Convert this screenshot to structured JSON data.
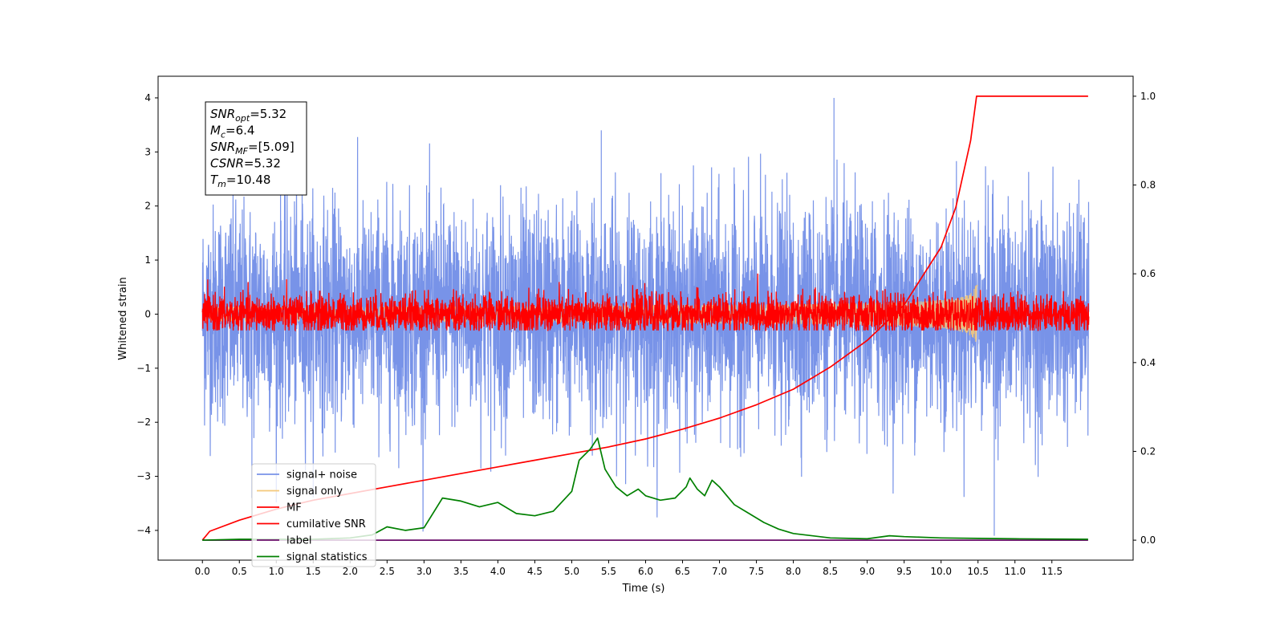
{
  "chart_data": {
    "type": "line",
    "title": "",
    "xlabel": "Time (s)",
    "ylabel": "Whitened strain",
    "xlim": [
      -0.6,
      12.6
    ],
    "ylim": [
      -4.55,
      4.4
    ],
    "y2lim": [
      -0.045,
      1.045
    ],
    "xticks": [
      0.0,
      0.5,
      1.0,
      1.5,
      2.0,
      2.5,
      3.0,
      3.5,
      4.0,
      4.5,
      5.0,
      5.5,
      6.0,
      6.5,
      7.0,
      7.5,
      8.0,
      8.5,
      9.0,
      9.5,
      10.0,
      10.5,
      11.0,
      11.5
    ],
    "xtick_labels": [
      "0.0",
      "0.5",
      "1.0",
      "1.5",
      "2.0",
      "2.5",
      "3.0",
      "3.5",
      "4.0",
      "4.5",
      "5.0",
      "5.5",
      "6.0",
      "6.5",
      "7.0",
      "7.5",
      "8.0",
      "8.5",
      "9.0",
      "9.5",
      "10.0",
      "10.5",
      "11.0",
      "11.5"
    ],
    "yticks": [
      -4,
      -3,
      -2,
      -1,
      0,
      1,
      2,
      3,
      4
    ],
    "ytick_labels": [
      "−4",
      "−3",
      "−2",
      "−1",
      "0",
      "1",
      "2",
      "3",
      "4"
    ],
    "y2ticks": [
      0.0,
      0.2,
      0.4,
      0.6,
      0.8,
      1.0
    ],
    "y2tick_labels": [
      "0.0",
      "0.2",
      "0.4",
      "0.6",
      "0.8",
      "1.0"
    ],
    "grid": false,
    "legend_position": "lower-left",
    "annotation": [
      {
        "main": "SNR",
        "sub": "opt",
        "value": "=5.32"
      },
      {
        "main": "M",
        "sub": "c",
        "value": "=6.4"
      },
      {
        "main": "SNR",
        "sub": "MF",
        "value": "=[5.09]"
      },
      {
        "main": "CSNR",
        "sub": "",
        "value": "=5.32"
      },
      {
        "main": "T",
        "sub": "m",
        "value": "=10.48"
      }
    ],
    "series": [
      {
        "name": "signal+ noise",
        "color": "#7893e8",
        "axis": "left",
        "kind": "noise",
        "center": 0.0,
        "amplitude": 1.0,
        "peak": 4.0,
        "trough": -4.1,
        "x_range": [
          0.0,
          12.0
        ]
      },
      {
        "name": "signal only",
        "color": "#f5c97a",
        "axis": "left",
        "kind": "chirp",
        "x_range": [
          0.0,
          10.5
        ],
        "peak_amplitude": 0.6
      },
      {
        "name": "MF",
        "color": "#ff0000",
        "axis": "left",
        "kind": "noise",
        "center": 0.0,
        "amplitude": 0.18,
        "peak": 0.75,
        "trough": -0.3,
        "x_range": [
          0.0,
          12.0
        ]
      },
      {
        "name": "cumilative SNR",
        "color": "#ff0000",
        "axis": "right",
        "kind": "line",
        "x": [
          0.0,
          0.1,
          0.5,
          1.0,
          1.5,
          2.0,
          2.5,
          3.0,
          3.5,
          4.0,
          4.5,
          5.0,
          5.5,
          6.0,
          6.5,
          7.0,
          7.5,
          8.0,
          8.5,
          9.0,
          9.5,
          10.0,
          10.2,
          10.4,
          10.48,
          11.0,
          11.5,
          11.99
        ],
        "y": [
          0.0,
          0.02,
          0.045,
          0.07,
          0.09,
          0.105,
          0.12,
          0.135,
          0.15,
          0.165,
          0.18,
          0.195,
          0.21,
          0.228,
          0.25,
          0.275,
          0.305,
          0.34,
          0.39,
          0.45,
          0.53,
          0.66,
          0.75,
          0.9,
          1.0,
          1.0,
          1.0,
          1.0
        ]
      },
      {
        "name": "label",
        "color": "#6b0f6b",
        "axis": "right",
        "kind": "line",
        "x": [
          0.0,
          11.99
        ],
        "y": [
          0.0,
          0.0
        ]
      },
      {
        "name": "signal statistics",
        "color": "#008000",
        "axis": "right",
        "kind": "line",
        "x": [
          0.0,
          0.5,
          1.0,
          1.5,
          2.0,
          2.3,
          2.5,
          2.75,
          3.0,
          3.25,
          3.5,
          3.75,
          4.0,
          4.25,
          4.5,
          4.75,
          5.0,
          5.1,
          5.25,
          5.35,
          5.45,
          5.6,
          5.75,
          5.9,
          6.0,
          6.2,
          6.4,
          6.55,
          6.6,
          6.7,
          6.8,
          6.9,
          7.0,
          7.2,
          7.4,
          7.6,
          7.8,
          8.0,
          8.5,
          9.0,
          9.3,
          9.5,
          10.0,
          10.5,
          11.0,
          11.99
        ],
        "y": [
          0.0,
          0.002,
          0.002,
          0.002,
          0.005,
          0.012,
          0.03,
          0.022,
          0.028,
          0.095,
          0.088,
          0.075,
          0.085,
          0.06,
          0.055,
          0.065,
          0.11,
          0.18,
          0.205,
          0.23,
          0.16,
          0.12,
          0.1,
          0.115,
          0.1,
          0.09,
          0.095,
          0.12,
          0.14,
          0.115,
          0.1,
          0.135,
          0.12,
          0.08,
          0.06,
          0.04,
          0.025,
          0.015,
          0.005,
          0.003,
          0.01,
          0.008,
          0.005,
          0.004,
          0.003,
          0.002
        ]
      }
    ]
  }
}
